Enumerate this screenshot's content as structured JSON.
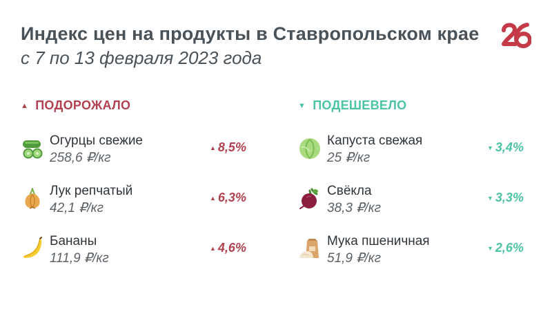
{
  "header": {
    "title": "Индекс цен на продукты в Ставропольском крае",
    "subtitle": "с 7 по 13 февраля 2023 года",
    "logo_icon": "logo-26-icon"
  },
  "colors": {
    "up": "#b0414f",
    "down": "#4cc3a6",
    "logo": "#c43a48"
  },
  "sections": {
    "up": {
      "label": "ПОДОРОЖАЛО",
      "marker": "▲",
      "items": [
        {
          "name": "Огурцы свежие",
          "price": "258,6 ₽/кг",
          "change": "8,5%",
          "marker": "▲",
          "icon": "cucumber-icon"
        },
        {
          "name": "Лук репчатый",
          "price": "42,1 ₽/кг",
          "change": "6,3%",
          "marker": "▲",
          "icon": "onion-icon"
        },
        {
          "name": "Бананы",
          "price": "111,9 ₽/кг",
          "change": "4,6%",
          "marker": "▲",
          "icon": "banana-icon"
        }
      ]
    },
    "down": {
      "label": "ПОДЕШЕВЕЛО",
      "marker": "▼",
      "items": [
        {
          "name": "Капуста свежая",
          "price": "25 ₽/кг",
          "change": "3,4%",
          "marker": "▼",
          "icon": "cabbage-icon"
        },
        {
          "name": "Свёкла",
          "price": "38,3 ₽/кг",
          "change": "3,3%",
          "marker": "▼",
          "icon": "beet-icon"
        },
        {
          "name": "Мука пшеничная",
          "price": "51,9 ₽/кг",
          "change": "2,6%",
          "marker": "▼",
          "icon": "flour-icon"
        }
      ]
    }
  }
}
